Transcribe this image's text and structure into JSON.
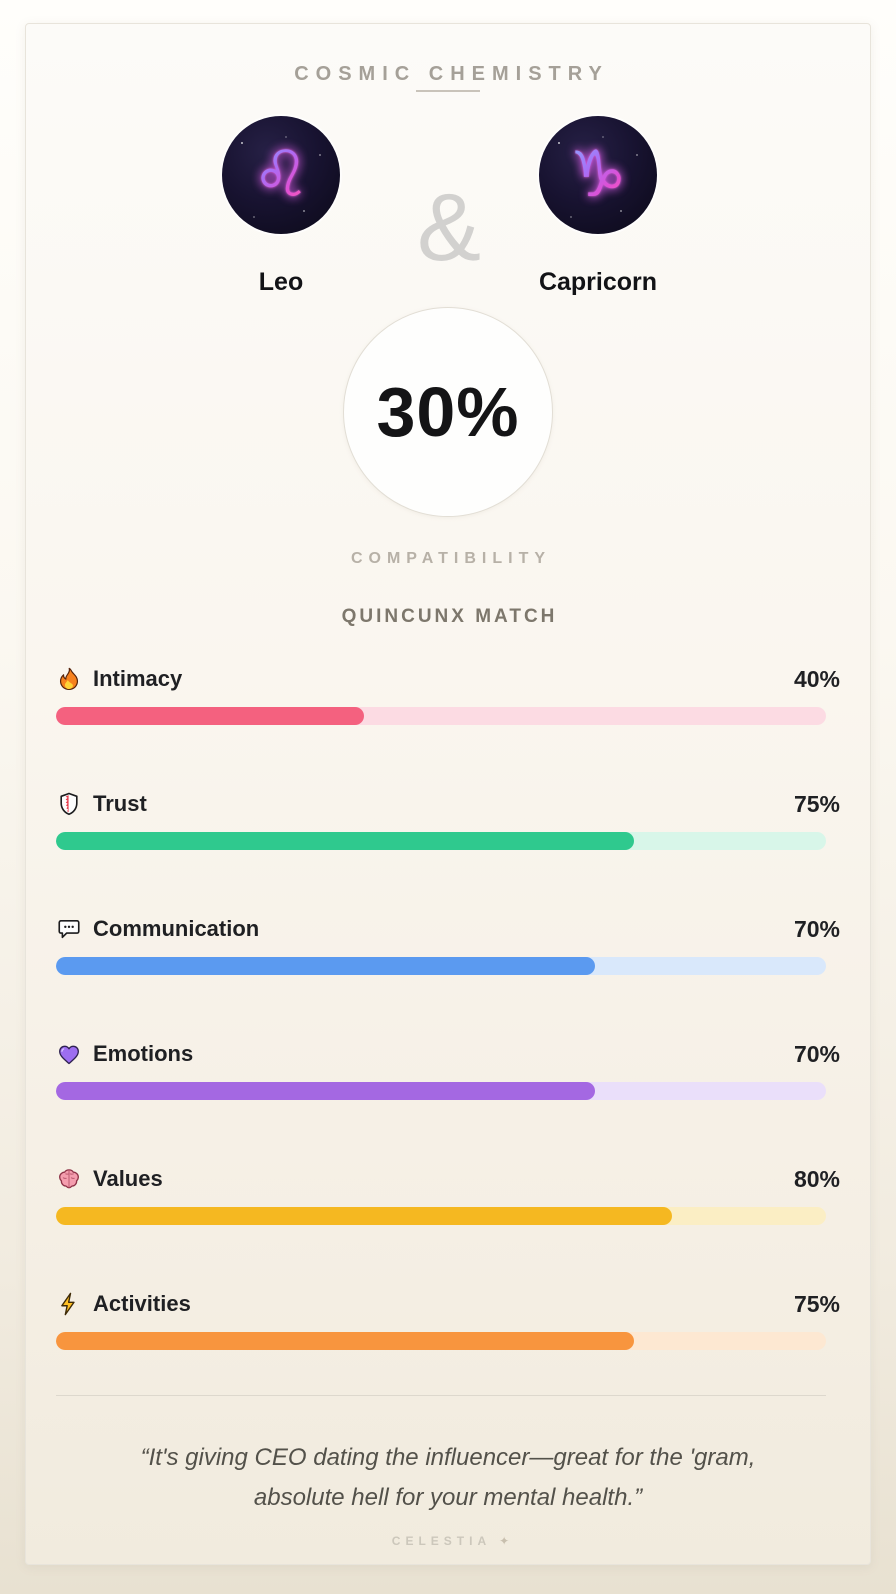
{
  "header": {
    "title": "COSMIC CHEMISTRY"
  },
  "pair": {
    "ampersand": "&",
    "left": {
      "name": "Leo",
      "symbol": "♌",
      "icon": "leo-zodiac-icon"
    },
    "right": {
      "name": "Capricorn",
      "symbol": "♑",
      "icon": "capricorn-zodiac-icon"
    }
  },
  "score": {
    "value": 30,
    "value_label": "30%",
    "caption": "COMPATIBILITY",
    "match_type": "QUINCUNX MATCH"
  },
  "metrics": [
    {
      "label": "Intimacy",
      "icon": "fire-icon",
      "percent": 40,
      "percent_label": "40%",
      "fill": "#f4617f",
      "track": "#fcdbe3"
    },
    {
      "label": "Trust",
      "icon": "shield-icon",
      "percent": 75,
      "percent_label": "75%",
      "fill": "#2fc98e",
      "track": "#d8f6e9"
    },
    {
      "label": "Communication",
      "icon": "speech-balloon-icon",
      "percent": 70,
      "percent_label": "70%",
      "fill": "#5b9af0",
      "track": "#d9e8fb"
    },
    {
      "label": "Emotions",
      "icon": "purple-heart-icon",
      "percent": 70,
      "percent_label": "70%",
      "fill": "#a468e2",
      "track": "#eadffa"
    },
    {
      "label": "Values",
      "icon": "brain-icon",
      "percent": 80,
      "percent_label": "80%",
      "fill": "#f5b821",
      "track": "#fbeec4"
    },
    {
      "label": "Activities",
      "icon": "zap-icon",
      "percent": 75,
      "percent_label": "75%",
      "fill": "#f8953e",
      "track": "#fde8d2"
    }
  ],
  "quote": {
    "lines": [
      "“It's giving CEO dating the influencer—great for the 'gram,",
      "absolute hell for your mental health.”"
    ]
  },
  "brand": {
    "name": "CELESTIA",
    "sparkle": "✦"
  }
}
